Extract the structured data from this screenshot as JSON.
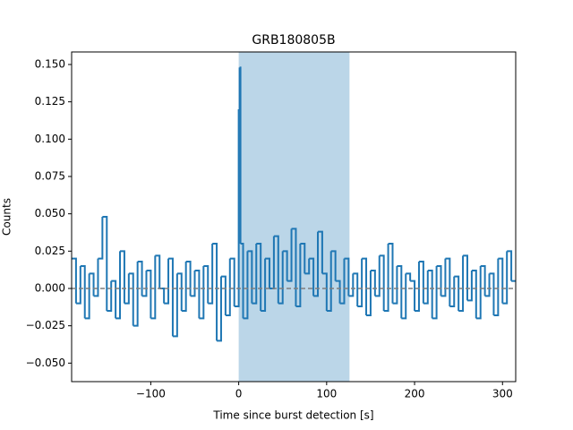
{
  "chart_data": {
    "type": "step",
    "title": "GRB180805B",
    "xlabel": "Time since burst detection [s]",
    "ylabel": "Counts",
    "x": [
      -190,
      -185,
      -180,
      -175,
      -170,
      -165,
      -160,
      -155,
      -150,
      -145,
      -140,
      -135,
      -130,
      -125,
      -120,
      -115,
      -110,
      -105,
      -100,
      -95,
      -90,
      -85,
      -80,
      -75,
      -70,
      -65,
      -60,
      -55,
      -50,
      -45,
      -40,
      -35,
      -30,
      -25,
      -20,
      -15,
      -10,
      -5,
      0,
      1,
      2,
      5,
      10,
      15,
      20,
      25,
      30,
      35,
      40,
      45,
      50,
      55,
      60,
      65,
      70,
      75,
      80,
      85,
      90,
      95,
      100,
      105,
      110,
      115,
      120,
      125,
      130,
      135,
      140,
      145,
      150,
      155,
      160,
      165,
      170,
      175,
      180,
      185,
      190,
      195,
      200,
      205,
      210,
      215,
      220,
      225,
      230,
      235,
      240,
      245,
      250,
      255,
      260,
      265,
      270,
      275,
      280,
      285,
      290,
      295,
      300,
      305,
      310
    ],
    "values": [
      0.02,
      -0.01,
      0.015,
      -0.02,
      0.01,
      -0.005,
      0.02,
      0.048,
      -0.015,
      0.005,
      -0.02,
      0.025,
      -0.01,
      0.01,
      -0.025,
      0.018,
      -0.005,
      0.012,
      -0.02,
      0.022,
      0.0,
      -0.01,
      0.02,
      -0.032,
      0.01,
      -0.015,
      0.018,
      -0.005,
      0.012,
      -0.02,
      0.015,
      -0.01,
      0.03,
      -0.035,
      0.008,
      -0.018,
      0.02,
      -0.012,
      0.12,
      0.148,
      0.03,
      -0.02,
      0.025,
      -0.01,
      0.03,
      -0.015,
      0.02,
      0.0,
      0.035,
      -0.01,
      0.025,
      0.005,
      0.04,
      -0.012,
      0.03,
      0.01,
      0.02,
      -0.005,
      0.038,
      0.01,
      -0.015,
      0.025,
      0.005,
      -0.01,
      0.02,
      -0.005,
      0.01,
      -0.012,
      0.02,
      -0.018,
      0.012,
      -0.005,
      0.022,
      -0.015,
      0.03,
      -0.01,
      0.015,
      -0.02,
      0.01,
      0.005,
      -0.015,
      0.018,
      -0.01,
      0.012,
      -0.02,
      0.015,
      -0.005,
      0.02,
      -0.012,
      0.008,
      -0.015,
      0.022,
      -0.008,
      0.012,
      -0.02,
      0.015,
      -0.005,
      0.01,
      -0.018,
      0.02,
      -0.01,
      0.025,
      0.005
    ],
    "color": "#1f77b4",
    "highlight_span": [
      0,
      126
    ],
    "highlight_color": "#1f77b4",
    "background_level": 0,
    "background_color": "#7f7f7f",
    "xlim": [
      -190,
      315
    ],
    "xticks": [
      {
        "value": -100,
        "label": "−100"
      },
      0,
      100,
      200,
      300
    ],
    "ylim": [
      -0.0624,
      0.1584
    ],
    "yticks": [
      {
        "value": -0.05,
        "label": "−0.050"
      },
      {
        "value": -0.025,
        "label": "−0.025"
      },
      {
        "value": 0,
        "label": "0.000"
      },
      {
        "value": 0.025,
        "label": "0.025"
      },
      {
        "value": 0.05,
        "label": "0.050"
      },
      {
        "value": 0.075,
        "label": "0.075"
      },
      {
        "value": 0.1,
        "label": "0.100"
      },
      {
        "value": 0.125,
        "label": "0.125"
      },
      {
        "value": 0.15,
        "label": "0.150"
      }
    ],
    "grid": false
  }
}
